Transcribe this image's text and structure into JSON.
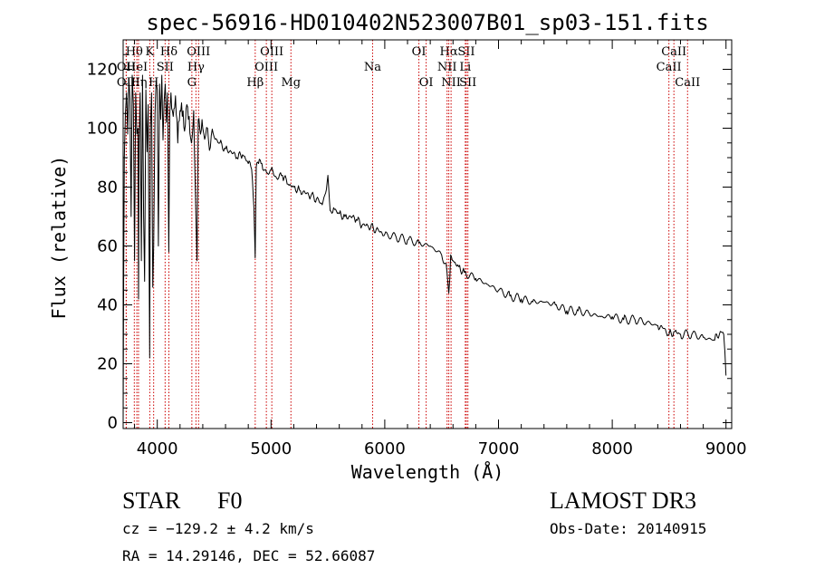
{
  "chart_data": {
    "type": "line",
    "title": "spec-56916-HD010402N523007B01_sp03-151.fits",
    "xlabel": "Wavelength (Å)",
    "ylabel": "Flux (relative)",
    "xlim": [
      3700,
      9050
    ],
    "ylim": [
      -2,
      130
    ],
    "xticks": [
      4000,
      5000,
      6000,
      7000,
      8000,
      9000
    ],
    "yticks": [
      0,
      20,
      40,
      60,
      80,
      100,
      120
    ],
    "grid": false,
    "series": [
      {
        "name": "flux",
        "x": [
          3700,
          3705,
          3710,
          3720,
          3730,
          3740,
          3750,
          3760,
          3770,
          3780,
          3790,
          3800,
          3810,
          3820,
          3830,
          3835,
          3840,
          3850,
          3860,
          3870,
          3880,
          3889,
          3900,
          3910,
          3920,
          3933,
          3940,
          3950,
          3960,
          3968,
          3980,
          3990,
          4000,
          4010,
          4020,
          4030,
          4040,
          4050,
          4060,
          4070,
          4080,
          4090,
          4101,
          4110,
          4120,
          4140,
          4160,
          4180,
          4200,
          4220,
          4240,
          4260,
          4280,
          4300,
          4320,
          4340,
          4350,
          4360,
          4380,
          4400,
          4450,
          4500,
          4550,
          4600,
          4650,
          4700,
          4750,
          4800,
          4830,
          4850,
          4861,
          4870,
          4890,
          4920,
          4960,
          5000,
          5050,
          5100,
          5150,
          5200,
          5250,
          5300,
          5350,
          5400,
          5450,
          5480,
          5500,
          5520,
          5550,
          5600,
          5650,
          5700,
          5750,
          5800,
          5850,
          5900,
          5950,
          6000,
          6100,
          6200,
          6300,
          6400,
          6500,
          6540,
          6563,
          6580,
          6600,
          6650,
          6700,
          6800,
          6900,
          7000,
          7100,
          7200,
          7300,
          7400,
          7500,
          7600,
          7700,
          7800,
          7900,
          8000,
          8100,
          8200,
          8300,
          8400,
          8450,
          8500,
          8550,
          8600,
          8700,
          8800,
          8900,
          8950,
          8980,
          8990,
          9000
        ],
        "values": [
          0,
          52,
          90,
          105,
          112,
          98,
          117,
          110,
          70,
          118,
          108,
          55,
          112,
          98,
          100,
          42,
          95,
          112,
          55,
          118,
          70,
          48,
          113,
          92,
          108,
          22,
          100,
          112,
          46,
          60,
          105,
          116,
          113,
          60,
          115,
          103,
          118,
          96,
          109,
          115,
          102,
          112,
          58,
          105,
          112,
          104,
          111,
          95,
          106,
          104,
          99,
          108,
          104,
          95,
          106,
          70,
          55,
          103,
          98,
          100,
          96,
          97,
          95,
          93,
          92,
          90,
          91,
          88,
          86,
          73,
          56,
          87,
          88,
          88,
          85,
          86,
          83,
          84,
          81,
          80,
          79,
          78,
          77,
          76,
          74,
          78,
          84,
          72,
          73,
          71,
          70,
          70,
          69,
          67,
          67,
          66,
          65,
          64,
          63,
          62,
          61,
          60,
          57,
          54,
          44,
          57,
          55,
          53,
          51,
          49,
          47,
          45,
          43,
          42,
          41,
          41,
          40,
          38,
          38,
          37,
          36,
          36,
          35,
          35,
          34,
          33,
          32,
          30,
          31,
          30,
          30,
          29,
          28,
          31,
          30,
          24,
          16
        ]
      }
    ],
    "line_annotations": [
      {
        "label": "Hθ",
        "wavelength": 3798,
        "row": 1
      },
      {
        "label": "OII",
        "wavelength": 3727,
        "row": 2
      },
      {
        "label": "HeI",
        "wavelength": 3820,
        "row": 2
      },
      {
        "label": "OII",
        "wavelength": 3727,
        "row": 3
      },
      {
        "label": "Hη",
        "wavelength": 3835,
        "row": 3
      },
      {
        "label": "K",
        "wavelength": 3934,
        "row": 1
      },
      {
        "label": "SII",
        "wavelength": 4069,
        "row": 2
      },
      {
        "label": "H",
        "wavelength": 3968,
        "row": 3
      },
      {
        "label": "Hδ",
        "wavelength": 4102,
        "row": 1
      },
      {
        "label": "OIII",
        "wavelength": 4363,
        "row": 1
      },
      {
        "label": "Hγ",
        "wavelength": 4340,
        "row": 2
      },
      {
        "label": "G",
        "wavelength": 4304,
        "row": 3
      },
      {
        "label": "Hβ",
        "wavelength": 4861,
        "row": 3
      },
      {
        "label": "OIII",
        "wavelength": 5007,
        "row": 1
      },
      {
        "label": "OIII",
        "wavelength": 4959,
        "row": 2
      },
      {
        "label": "Mg",
        "wavelength": 5175,
        "row": 3
      },
      {
        "label": "Na",
        "wavelength": 5893,
        "row": 2
      },
      {
        "label": "OI",
        "wavelength": 6300,
        "row": 1
      },
      {
        "label": "OI",
        "wavelength": 6364,
        "row": 3
      },
      {
        "label": "Hα",
        "wavelength": 6563,
        "row": 1
      },
      {
        "label": "SII",
        "wavelength": 6717,
        "row": 1
      },
      {
        "label": "NII",
        "wavelength": 6548,
        "row": 2
      },
      {
        "label": "Li",
        "wavelength": 6708,
        "row": 2
      },
      {
        "label": "NII",
        "wavelength": 6583,
        "row": 3
      },
      {
        "label": "SII",
        "wavelength": 6731,
        "row": 3
      },
      {
        "label": "CaII",
        "wavelength": 8542,
        "row": 1
      },
      {
        "label": "CaII",
        "wavelength": 8498,
        "row": 2
      },
      {
        "label": "CaII",
        "wavelength": 8662,
        "row": 3
      }
    ],
    "line_color": "#000000",
    "annotation_color": "#cc0000"
  },
  "info": {
    "object_class": "STAR",
    "subclass": "F0",
    "survey": "LAMOST DR3",
    "cz": "cz = −129.2 ± 4.2 km/s",
    "obs_date": "Obs-Date: 20140915",
    "coords": "RA =  14.29146, DEC =  52.66087"
  }
}
